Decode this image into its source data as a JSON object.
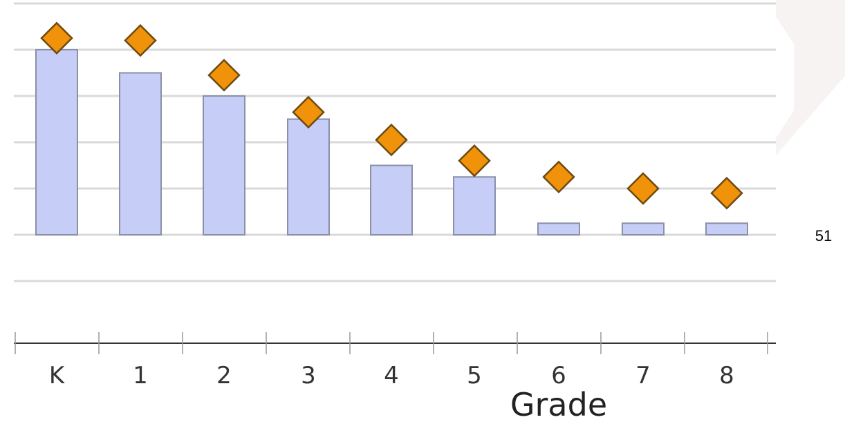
{
  "chart_data": {
    "type": "bar",
    "categories": [
      "K",
      "1",
      "2",
      "3",
      "4",
      "5",
      "6",
      "7",
      "8"
    ],
    "series": [
      {
        "values": [
          8.0,
          7.0,
          6.0,
          5.0,
          3.0,
          2.5,
          0.5,
          0.5,
          0.5
        ]
      },
      {
        "values": [
          8.5,
          8.4,
          6.9,
          5.3,
          4.1,
          3.2,
          2.5,
          2.0,
          1.8
        ]
      }
    ],
    "xlabel": "Grade",
    "ylim": [
      -5,
      10
    ],
    "grid": true
  },
  "page_number": "51",
  "colors": {
    "bar_fill": "#c6cdf7",
    "bar_stroke": "#8a90a6",
    "marker_fill": "#f0920a",
    "marker_stroke": "#6e4a12",
    "grid": "#d9d9d9"
  }
}
